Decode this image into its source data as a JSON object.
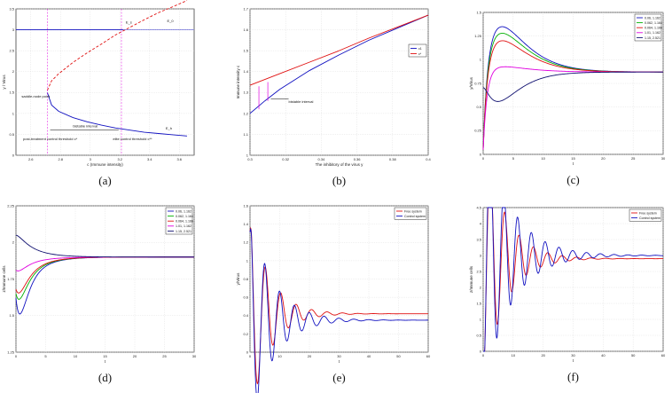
{
  "chart_data": [
    {
      "id": "a",
      "type": "line",
      "panel_label": "(a)",
      "xlabel": "c (Immune intensity)",
      "ylabel": "y / Virus",
      "xlim": [
        2.5,
        3.75
      ],
      "ylim": [
        0,
        3.5
      ],
      "xticks": [
        "2.6",
        "2.8",
        "3",
        "3.2",
        "3.4",
        "3.6"
      ],
      "yticks": [
        "0",
        "0.5",
        "1",
        "1.5",
        "2",
        "2.5",
        "3",
        "3.5"
      ],
      "grid": true,
      "series": [
        {
          "name": "lower branch",
          "color": "#1010c0",
          "style": "solid",
          "x": [
            2.72,
            2.75,
            2.8,
            2.9,
            3.0,
            3.1,
            3.2,
            3.3,
            3.4,
            3.5,
            3.6,
            3.7
          ],
          "y": [
            1.5,
            1.2,
            1.05,
            0.9,
            0.8,
            0.72,
            0.65,
            0.6,
            0.55,
            0.52,
            0.49,
            0.46
          ]
        },
        {
          "name": "upper branch",
          "color": "#e01010",
          "style": "dashed",
          "x": [
            2.72,
            2.75,
            2.8,
            2.9,
            3.0,
            3.1,
            3.2,
            3.3,
            3.4,
            3.5,
            3.6,
            3.7
          ],
          "y": [
            1.55,
            1.78,
            1.95,
            2.22,
            2.45,
            2.66,
            2.88,
            3.06,
            3.24,
            3.41,
            3.55,
            3.7
          ]
        },
        {
          "name": "virus-free line",
          "color": "#1010c0",
          "style": "solid",
          "x": [
            2.5,
            3.25
          ],
          "y": [
            3.0,
            3.0
          ]
        },
        {
          "name": "virus-free line dotted",
          "color": "#1010c0",
          "style": "dotted",
          "x": [
            3.25,
            3.75
          ],
          "y": [
            3.0,
            3.0
          ]
        }
      ],
      "vlines": [
        2.72,
        3.24
      ],
      "annotations": [
        {
          "text": "saddle-node point",
          "x": 2.54,
          "y": 1.38
        },
        {
          "text": "bistable interval",
          "x": 2.9,
          "y": 0.67
        },
        {
          "text": "post-treatment control threshold c*",
          "x": 2.55,
          "y": 0.36
        },
        {
          "text": "elite control threshold c**",
          "x": 3.18,
          "y": 0.36
        },
        {
          "text": "E_s",
          "x": 3.27,
          "y": 3.15
        },
        {
          "text": "E_0",
          "x": 3.56,
          "y": 3.18
        },
        {
          "text": "E_h",
          "x": 3.55,
          "y": 0.62
        }
      ]
    },
    {
      "id": "b",
      "type": "line",
      "panel_label": "(b)",
      "xlabel": "The inhibitory of the virus y",
      "ylabel": "Immune intensity c",
      "xlim": [
        0.3,
        0.9
      ],
      "ylim": [
        1.0,
        1.7
      ],
      "xticks": [
        "0.3",
        "0.32",
        "0.34",
        "0.36",
        "0.38",
        "0.4"
      ],
      "yticks": [
        "1",
        "1.1",
        "1.2",
        "1.3",
        "1.4",
        "1.5",
        "1.6",
        "1.7"
      ],
      "grid": true,
      "legend": [
        {
          "label": "c1",
          "color": "#1010c0"
        },
        {
          "label": "c*",
          "color": "#e01010"
        }
      ],
      "series": [
        {
          "name": "c1",
          "color": "#1010c0",
          "style": "solid",
          "x": [
            0.3,
            0.35,
            0.4,
            0.5,
            0.6,
            0.7,
            0.8,
            0.9
          ],
          "y": [
            1.2,
            1.26,
            1.315,
            1.405,
            1.48,
            1.55,
            1.61,
            1.67
          ]
        },
        {
          "name": "c*",
          "color": "#e01010",
          "style": "solid",
          "x": [
            0.3,
            0.4,
            0.5,
            0.6,
            0.7,
            0.8,
            0.9
          ],
          "y": [
            1.335,
            1.39,
            1.445,
            1.5,
            1.56,
            1.615,
            1.67
          ]
        }
      ],
      "annotations": [
        {
          "text": "bistable interval",
          "x": 0.43,
          "y": 1.25
        }
      ]
    },
    {
      "id": "c",
      "type": "line",
      "panel_label": "(c)",
      "xlabel": "t",
      "ylabel": "y/Virus",
      "xlim": [
        0,
        30
      ],
      "ylim": [
        0,
        1.5
      ],
      "xticks": [
        "0",
        "5",
        "10",
        "15",
        "20",
        "25",
        "30"
      ],
      "yticks": [
        "0",
        "0.25",
        "0.5",
        "0.75",
        "1",
        "1.25",
        "1.5"
      ],
      "grid": true,
      "legend_position": "top-right",
      "series": [
        {
          "name": "0.06, 1.162",
          "color": "#1010c0",
          "peak": 1.36,
          "dip": null
        },
        {
          "name": "0.062, 1.164",
          "color": "#00b000",
          "peak": 1.29,
          "dip": null
        },
        {
          "name": "0.064, 1.166",
          "color": "#e01010",
          "peak": 1.21,
          "dip": null
        },
        {
          "name": "1.01, 1.162",
          "color": "#e000e0",
          "peak": 0.93,
          "dip": null
        },
        {
          "name": "1.15, 2.521",
          "color": "#101070",
          "peak": null,
          "dip": 0.56
        }
      ],
      "steady_state": 0.87
    },
    {
      "id": "d",
      "type": "line",
      "panel_label": "(d)",
      "xlabel": "t",
      "ylabel": "z/Immune cells",
      "xlim": [
        0,
        30
      ],
      "ylim": [
        1.25,
        2.25
      ],
      "xticks": [
        "0",
        "5",
        "10",
        "15",
        "20",
        "25",
        "30"
      ],
      "yticks": [
        "1.25",
        "1.5",
        "1.75",
        "2",
        "2.25"
      ],
      "grid": true,
      "legend_position": "top-right",
      "series": [
        {
          "name": "0.06, 1.162",
          "color": "#1010c0",
          "start": 1.62,
          "extreme": 1.37
        },
        {
          "name": "0.062, 1.164",
          "color": "#00b000",
          "start": 1.65,
          "extreme": 1.52
        },
        {
          "name": "0.064, 1.166",
          "color": "#e01010",
          "start": 1.68,
          "extreme": 1.58
        },
        {
          "name": "1.01, 1.162",
          "color": "#e000e0",
          "start": 1.81,
          "extreme": 1.78
        },
        {
          "name": "1.15, 2.521",
          "color": "#101070",
          "start": 2.05,
          "extreme": 2.07
        }
      ],
      "steady_state": 1.9
    },
    {
      "id": "e",
      "type": "line",
      "panel_label": "(e)",
      "xlabel": "t",
      "ylabel": "y/Virus",
      "xlim": [
        0,
        60
      ],
      "ylim": [
        0,
        1.6
      ],
      "xticks": [
        "0",
        "10",
        "20",
        "30",
        "40",
        "50",
        "60"
      ],
      "yticks": [
        "0",
        "0.2",
        "0.4",
        "0.6",
        "0.8",
        "1",
        "1.2",
        "1.4",
        "1.6"
      ],
      "grid": true,
      "legend_position": "top-right",
      "series": [
        {
          "name": "Free system",
          "color": "#e01010",
          "steady": 0.42,
          "period": 5.2,
          "decay": 6.5
        },
        {
          "name": "Control system",
          "color": "#1010c0",
          "steady": 0.35,
          "period": 5.0,
          "decay": 7.5
        }
      ]
    },
    {
      "id": "f",
      "type": "line",
      "panel_label": "(f)",
      "xlabel": "t",
      "ylabel": "z/Immune cells",
      "xlim": [
        0,
        60
      ],
      "ylim": [
        0,
        4.5
      ],
      "xticks": [
        "0",
        "10",
        "20",
        "30",
        "40",
        "50",
        "60"
      ],
      "yticks": [
        "0",
        "0.5",
        "1",
        "1.5",
        "2",
        "2.5",
        "3",
        "3.5",
        "4",
        "4.5"
      ],
      "grid": true,
      "legend_position": "top-right",
      "series": [
        {
          "name": "Free system",
          "color": "#e01010",
          "steady": 2.9,
          "peak": 4.2,
          "period": 4.8,
          "decay": 7
        },
        {
          "name": "Control system",
          "color": "#1010c0",
          "steady": 3.0,
          "peak": 4.45,
          "period": 4.6,
          "decay": 9
        }
      ]
    }
  ]
}
